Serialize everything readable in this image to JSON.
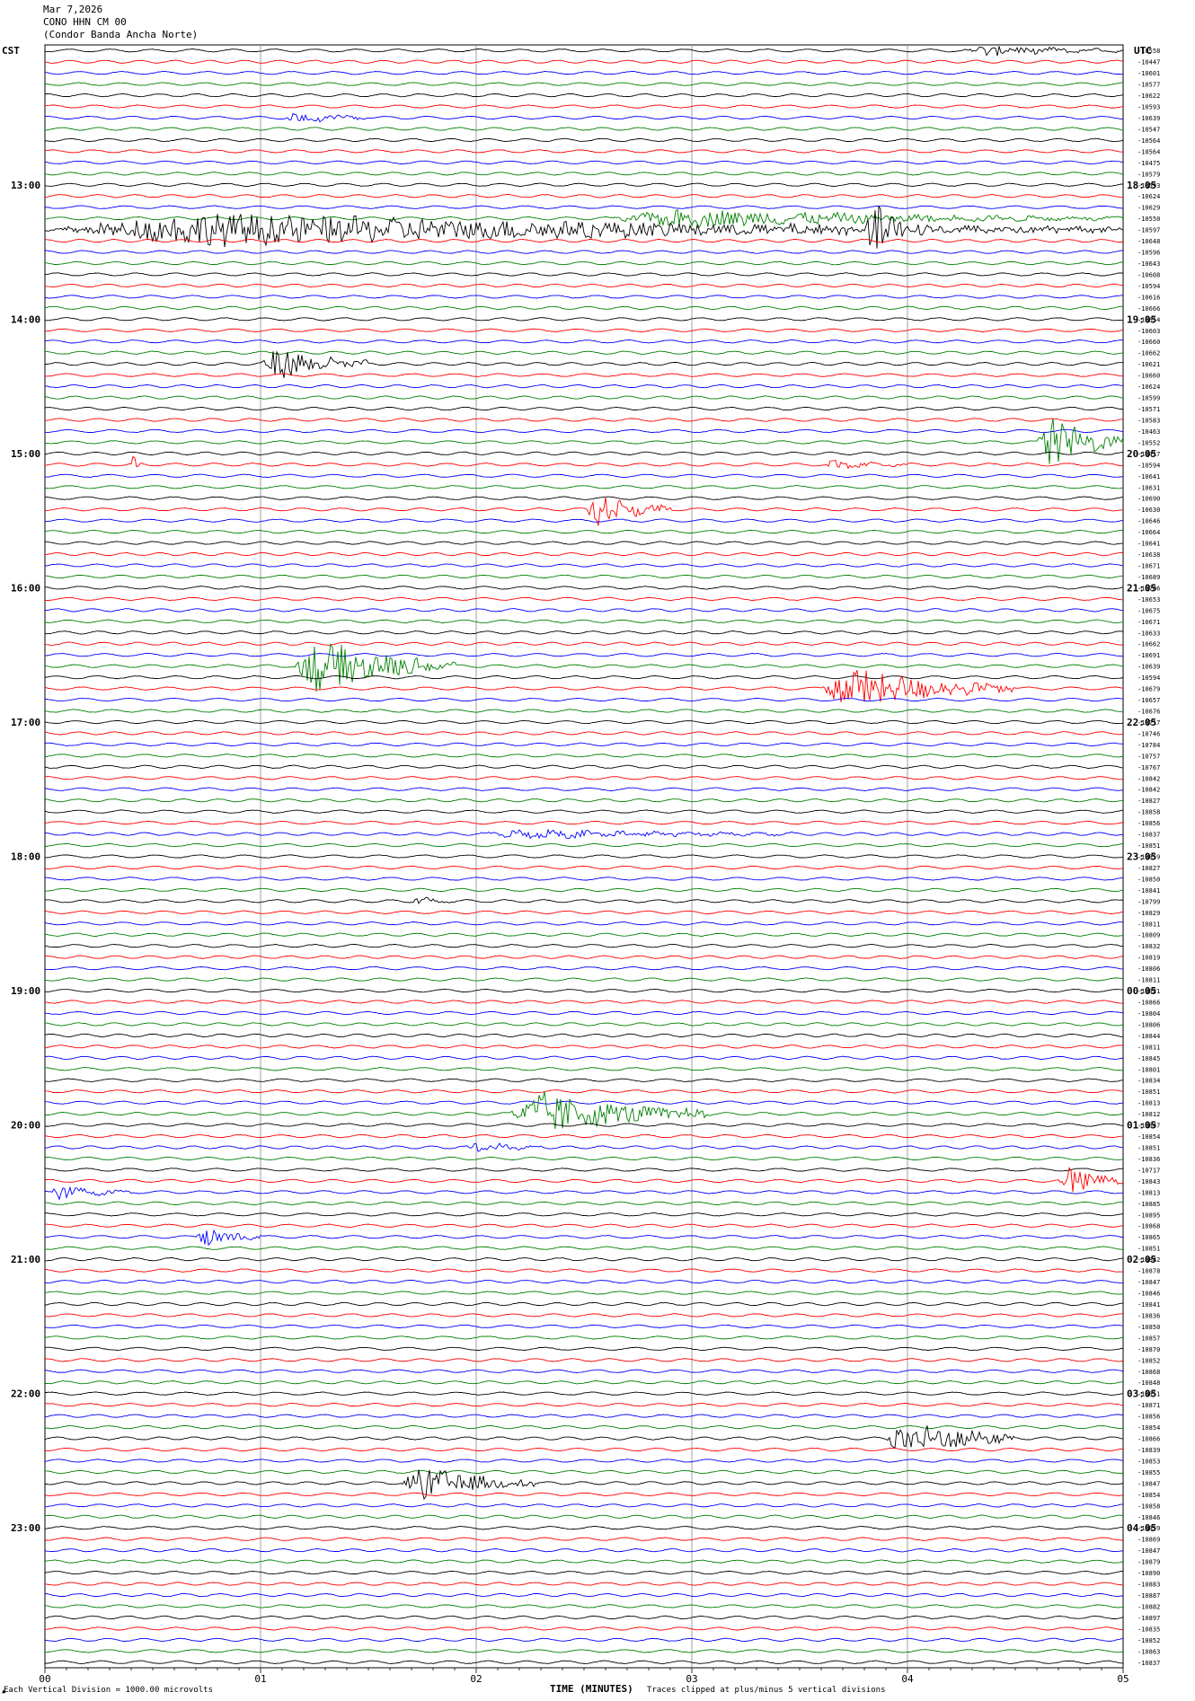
{
  "header": {
    "date": "Mar 7,2026",
    "station": "CONO HHN CM 00",
    "location": "(Condor Banda Ancha Norte)",
    "left_zone": "CST",
    "right_zone": "UTC"
  },
  "footer": {
    "scale_note": "Each Vertical Division = 1000.00 microvolts",
    "clip_note": "Traces clipped at plus/minus 5 vertical divisions"
  },
  "chart_data": {
    "type": "line",
    "xlabel": "TIME (MINUTES)",
    "x_ticks": [
      "00",
      "01",
      "02",
      "03",
      "04",
      "05"
    ],
    "xlim": [
      0,
      5
    ],
    "grid": true,
    "trace_colors": [
      "#000000",
      "#ff0000",
      "#0000ff",
      "#008000"
    ],
    "left_hour_labels": [
      "13:00",
      "14:00",
      "15:00",
      "16:00",
      "17:00",
      "18:00",
      "19:00",
      "20:00",
      "21:00",
      "22:00",
      "23:00"
    ],
    "right_hour_labels": [
      "18:05",
      "19:05",
      "20:05",
      "21:05",
      "22:05",
      "23:05",
      "00:05",
      "01:05",
      "02:05",
      "03:05",
      "04:05"
    ],
    "first_hour_label_trace": 12,
    "traces_per_hour": 12,
    "trace_values": [
      -10558,
      -10447,
      -10601,
      -10577,
      -10622,
      -10593,
      -10639,
      -10547,
      -10564,
      -10564,
      -10475,
      -10579,
      -10593,
      -10624,
      -10629,
      -10550,
      -10597,
      -10648,
      -10596,
      -10643,
      -10608,
      -10594,
      -10616,
      -10666,
      -10654,
      -10603,
      -10660,
      -10662,
      -10621,
      -10660,
      -10624,
      -10599,
      -10571,
      -10583,
      -10463,
      -10552,
      -10417,
      -10594,
      -10641,
      -10631,
      -10690,
      -10630,
      -10646,
      -10664,
      -10641,
      -10638,
      -10671,
      -10689,
      -10706,
      -10653,
      -10675,
      -10671,
      -10633,
      -10662,
      -10691,
      -10639,
      -10594,
      -10679,
      -10657,
      -10676,
      -10717,
      -10746,
      -10784,
      -10757,
      -10767,
      -10842,
      -10842,
      -10827,
      -10858,
      -10856,
      -10837,
      -10851,
      -10859,
      -10827,
      -10850,
      -10841,
      -10799,
      -10829,
      -10811,
      -10809,
      -10832,
      -10819,
      -10806,
      -10811,
      -10821,
      -10866,
      -10804,
      -10806,
      -10844,
      -10811,
      -10845,
      -10801,
      -10834,
      -10851,
      -10813,
      -10812,
      -10847,
      -10854,
      -10851,
      -10836,
      -10717,
      -10843,
      -10813,
      -10885,
      -10895,
      -10868,
      -10865,
      -10851,
      -10842,
      -10878,
      -10847,
      -10846,
      -10841,
      -10836,
      -10850,
      -10857,
      -10870,
      -10852,
      -10868,
      -10848,
      -10851,
      -10871,
      -10856,
      -10854,
      -10866,
      -10839,
      -10853,
      -10855,
      -10847,
      -10854,
      -10858,
      -10846,
      -10859,
      -10869,
      -10847,
      -10879,
      -10890,
      -10883,
      -10887,
      -10882,
      -10897,
      -10835,
      -10852,
      -10863,
      -10837
    ],
    "events": [
      {
        "trace": 0,
        "start": 4.25,
        "end": 5.0,
        "amp": 0.5
      },
      {
        "trace": 6,
        "start": 1.1,
        "end": 1.5,
        "amp": 0.5
      },
      {
        "trace": 15,
        "start": 2.6,
        "end": 5.0,
        "amp": 0.8
      },
      {
        "trace": 16,
        "start": 0.0,
        "end": 5.0,
        "amp": 1.5
      },
      {
        "trace": 16,
        "start": 3.8,
        "end": 4.1,
        "amp": 2.5
      },
      {
        "trace": 28,
        "start": 1.0,
        "end": 1.5,
        "amp": 1.5
      },
      {
        "trace": 35,
        "start": 4.6,
        "end": 5.0,
        "amp": 2.5
      },
      {
        "trace": 37,
        "start": 0.4,
        "end": 0.45,
        "amp": 0.8
      },
      {
        "trace": 37,
        "start": 3.6,
        "end": 4.0,
        "amp": 0.4
      },
      {
        "trace": 41,
        "start": 2.5,
        "end": 2.9,
        "amp": 1.5
      },
      {
        "trace": 55,
        "start": 1.15,
        "end": 1.9,
        "amp": 2.5
      },
      {
        "trace": 57,
        "start": 3.6,
        "end": 4.5,
        "amp": 2.0
      },
      {
        "trace": 70,
        "start": 2.0,
        "end": 3.5,
        "amp": 0.4
      },
      {
        "trace": 76,
        "start": 1.7,
        "end": 1.9,
        "amp": 0.4
      },
      {
        "trace": 95,
        "start": 2.15,
        "end": 3.1,
        "amp": 2.0
      },
      {
        "trace": 98,
        "start": 1.95,
        "end": 2.3,
        "amp": 0.5
      },
      {
        "trace": 101,
        "start": 4.7,
        "end": 5.0,
        "amp": 1.5
      },
      {
        "trace": 102,
        "start": 0.0,
        "end": 0.4,
        "amp": 0.6
      },
      {
        "trace": 106,
        "start": 0.7,
        "end": 1.0,
        "amp": 1.0
      },
      {
        "trace": 124,
        "start": 3.9,
        "end": 4.5,
        "amp": 2.0
      },
      {
        "trace": 128,
        "start": 1.65,
        "end": 2.3,
        "amp": 1.5
      }
    ]
  }
}
